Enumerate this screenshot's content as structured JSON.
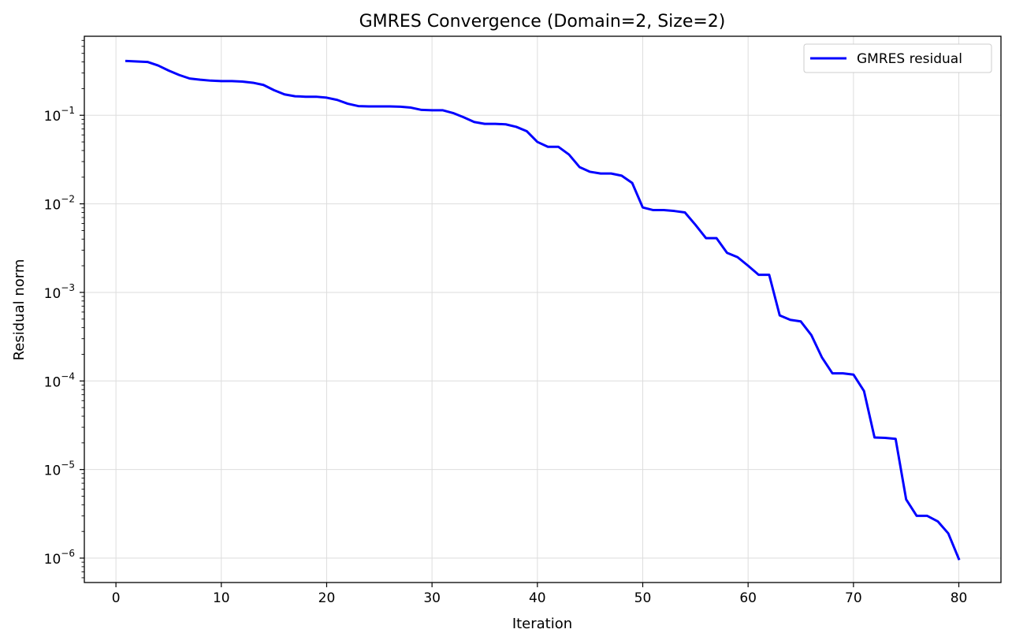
{
  "chart_data": {
    "type": "line",
    "title": "GMRES Convergence (Domain=2, Size=2)",
    "xlabel": "Iteration",
    "ylabel": "Residual norm",
    "xlim": [
      -3,
      84
    ],
    "ylim": [
      5.3e-07,
      0.78
    ],
    "yscale": "log",
    "grid": true,
    "legend_position": "top-right",
    "x_ticks": [
      0,
      10,
      20,
      30,
      40,
      50,
      60,
      70,
      80
    ],
    "x_tick_labels": [
      "0",
      "10",
      "20",
      "30",
      "40",
      "50",
      "60",
      "70",
      "80"
    ],
    "y_ticks": [
      1e-06,
      1e-05,
      0.0001,
      0.001,
      0.01,
      0.1
    ],
    "y_tick_labels": [
      {
        "base": "10",
        "exp": "−6"
      },
      {
        "base": "10",
        "exp": "−5"
      },
      {
        "base": "10",
        "exp": "−4"
      },
      {
        "base": "10",
        "exp": "−3"
      },
      {
        "base": "10",
        "exp": "−2"
      },
      {
        "base": "10",
        "exp": "−1"
      }
    ],
    "series": [
      {
        "name": "GMRES residual",
        "color": "#0000ff",
        "x": [
          1,
          2,
          3,
          4,
          5,
          6,
          7,
          8,
          9,
          10,
          11,
          12,
          13,
          14,
          15,
          16,
          17,
          18,
          19,
          20,
          21,
          22,
          23,
          24,
          25,
          26,
          27,
          28,
          29,
          30,
          31,
          32,
          33,
          34,
          35,
          36,
          37,
          38,
          39,
          40,
          41,
          42,
          43,
          44,
          45,
          46,
          47,
          48,
          49,
          50,
          51,
          52,
          53,
          54,
          55,
          56,
          57,
          58,
          59,
          60,
          61,
          62,
          63,
          64,
          65,
          66,
          67,
          68,
          69,
          70,
          71,
          72,
          73,
          74,
          75,
          76,
          77,
          78,
          79,
          80
        ],
        "y": [
          0.41,
          0.405,
          0.4,
          0.365,
          0.32,
          0.285,
          0.26,
          0.252,
          0.246,
          0.243,
          0.243,
          0.24,
          0.233,
          0.22,
          0.192,
          0.172,
          0.164,
          0.162,
          0.162,
          0.158,
          0.149,
          0.135,
          0.127,
          0.126,
          0.126,
          0.126,
          0.125,
          0.122,
          0.115,
          0.114,
          0.114,
          0.106,
          0.095,
          0.084,
          0.08,
          0.08,
          0.079,
          0.074,
          0.066,
          0.05,
          0.044,
          0.044,
          0.036,
          0.026,
          0.023,
          0.022,
          0.022,
          0.0208,
          0.0172,
          0.0091,
          0.0085,
          0.0085,
          0.0083,
          0.008,
          0.0058,
          0.0041,
          0.0041,
          0.0028,
          0.0025,
          0.002,
          0.00158,
          0.00158,
          0.00055,
          0.00049,
          0.00047,
          0.00033,
          0.000185,
          0.000122,
          0.000122,
          0.000118,
          7.7e-05,
          2.3e-05,
          2.28e-05,
          2.22e-05,
          4.6e-06,
          3e-06,
          3e-06,
          2.6e-06,
          1.9e-06,
          9.8e-07
        ]
      }
    ]
  }
}
